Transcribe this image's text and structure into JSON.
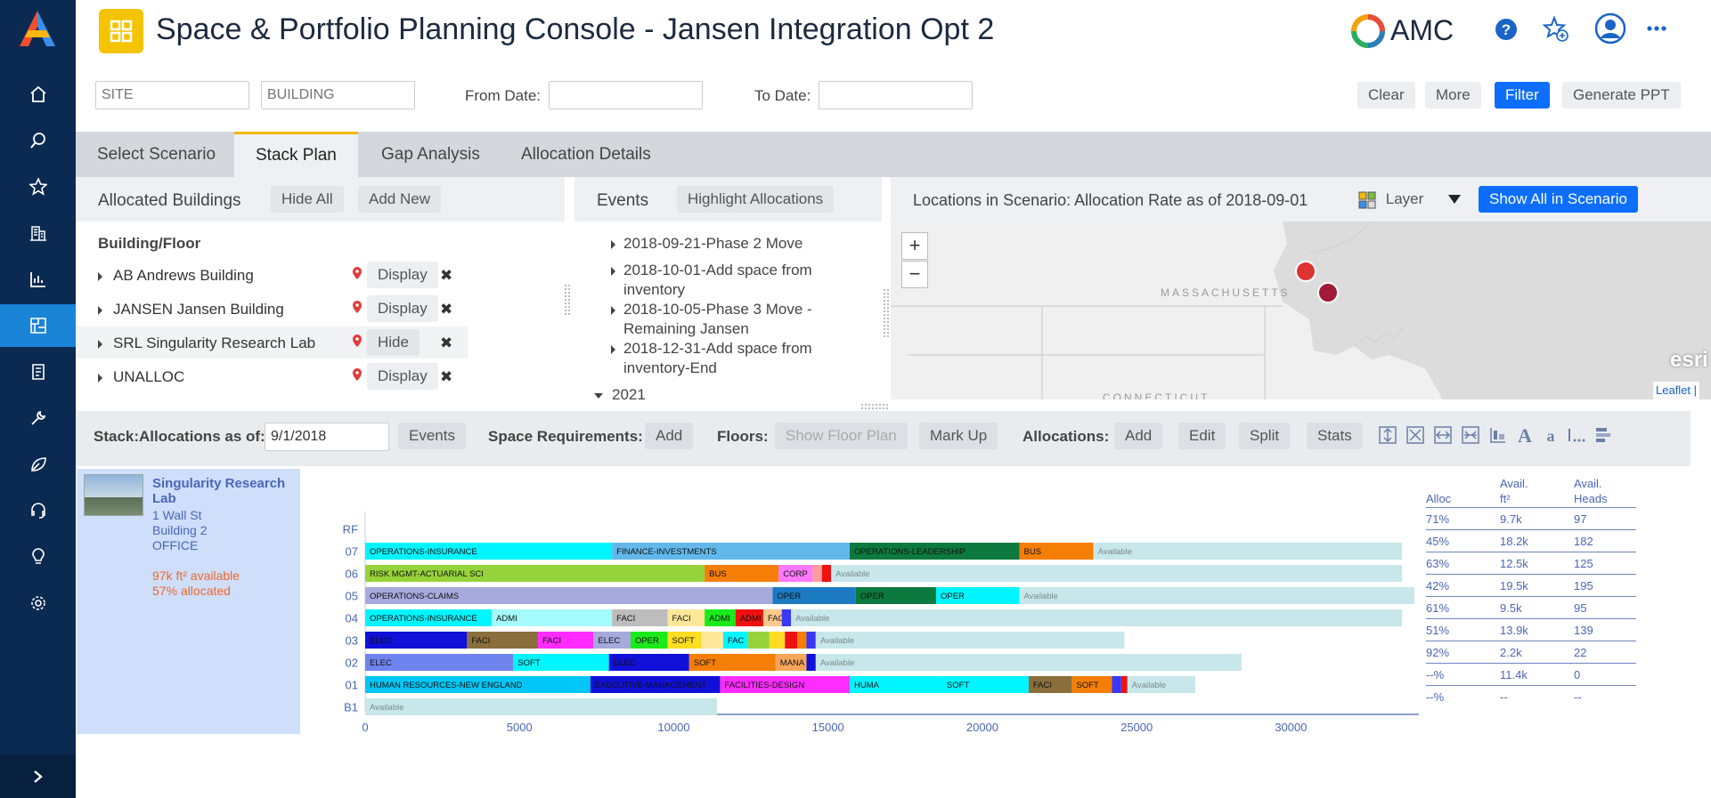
{
  "header": {
    "title": "Space & Portfolio Planning Console - Jansen Integration Opt 2",
    "brand": "AMC"
  },
  "filters": {
    "site_placeholder": "SITE",
    "building_placeholder": "BUILDING",
    "from_label": "From Date:",
    "to_label": "To Date:",
    "clear": "Clear",
    "more": "More",
    "filter": "Filter",
    "ppt": "Generate PPT"
  },
  "tabs": [
    "Select Scenario",
    "Stack Plan",
    "Gap Analysis",
    "Allocation Details"
  ],
  "buildings": {
    "title": "Allocated Buildings",
    "hide_all": "Hide All",
    "add_new": "Add New",
    "col_header": "Building/Floor",
    "rows": [
      {
        "name": "AB Andrews Building",
        "action": "Display"
      },
      {
        "name": "JANSEN Jansen Building",
        "action": "Display"
      },
      {
        "name": "SRL Singularity Research Lab",
        "action": "Hide"
      },
      {
        "name": "UNALLOC",
        "action": "Display"
      }
    ]
  },
  "events": {
    "title": "Events",
    "highlight": "Highlight Allocations",
    "items": [
      {
        "l1": "2018-09-21-Phase 2 Move",
        "l2": ""
      },
      {
        "l1": "2018-10-01-Add space from",
        "l2": "inventory"
      },
      {
        "l1": "2018-10-05-Phase 3 Move -",
        "l2": "Remaining Jansen"
      },
      {
        "l1": "2018-12-31-Add space from",
        "l2": "inventory-End"
      }
    ],
    "year": "2021"
  },
  "map": {
    "title": "Locations in Scenario: Allocation Rate as of 2018-09-01",
    "layer": "Layer",
    "show_all": "Show All in Scenario",
    "state": "MASSACHUSETTS",
    "state2": "CONNECTICUT",
    "zoom_in": "+",
    "zoom_out": "−",
    "esri": "esri",
    "attribution": "Leaflet |"
  },
  "stackbar": {
    "label": "Stack:Allocations as of:",
    "date": "9/1/2018",
    "events": "Events",
    "space_req": "Space Requirements:",
    "add": "Add",
    "floors": "Floors:",
    "show_floor_plan": "Show Floor Plan",
    "mark_up": "Mark Up",
    "allocations": "Allocations:",
    "alloc_add": "Add",
    "edit": "Edit",
    "split": "Split",
    "stats": "Stats"
  },
  "building_card": {
    "name": "Singularity Research Lab",
    "address": "1 Wall St",
    "building": "Building 2",
    "type": "OFFICE",
    "available": "97k ft² available",
    "allocated": "57% allocated"
  },
  "stats": {
    "headers": [
      "Alloc",
      "Avail.",
      "ft²",
      "Avail.",
      "Heads"
    ],
    "rows": [
      [
        "71%",
        "9.7k",
        "97"
      ],
      [
        "45%",
        "18.2k",
        "182"
      ],
      [
        "63%",
        "12.5k",
        "125"
      ],
      [
        "42%",
        "19.5k",
        "195"
      ],
      [
        "61%",
        "9.5k",
        "95"
      ],
      [
        "51%",
        "13.9k",
        "139"
      ],
      [
        "92%",
        "2.2k",
        "22"
      ],
      [
        "--%",
        "11.4k",
        "0"
      ],
      [
        "--%",
        "--",
        "--"
      ]
    ]
  },
  "chart_data": {
    "type": "bar",
    "orientation": "horizontal-stacked",
    "xlim": [
      0,
      34000
    ],
    "xticks": [
      0,
      5000,
      10000,
      15000,
      20000,
      25000,
      30000
    ],
    "floors": [
      {
        "floor": "RF",
        "segments": []
      },
      {
        "floor": "07",
        "segments": [
          {
            "label": "OPERATIONS-INSURANCE",
            "start": 0,
            "end": 8000,
            "color": "#00f5ff"
          },
          {
            "label": "FINANCE-INVESTMENTS",
            "start": 8000,
            "end": 15700,
            "color": "#62b8ea"
          },
          {
            "label": "OPERATIONS-LEADERSHIP",
            "start": 15700,
            "end": 21200,
            "color": "#0c7a3e"
          },
          {
            "label": "BUS",
            "start": 21200,
            "end": 23600,
            "color": "#f57e07"
          },
          {
            "label": "Available",
            "start": 23600,
            "end": 33600,
            "color": "#c8e7ea"
          }
        ]
      },
      {
        "floor": "06",
        "segments": [
          {
            "label": "RISK MGMT-ACTUARIAL SCI",
            "start": 0,
            "end": 11000,
            "color": "#96d33b"
          },
          {
            "label": "BUS",
            "start": 11000,
            "end": 13400,
            "color": "#f57e07"
          },
          {
            "label": "CORP",
            "start": 13400,
            "end": 14500,
            "color": "#ff78ff"
          },
          {
            "label": "",
            "start": 14500,
            "end": 14800,
            "color": "#ff9c9c"
          },
          {
            "label": "",
            "start": 14800,
            "end": 15100,
            "color": "#ee1111"
          },
          {
            "label": "Available",
            "start": 15100,
            "end": 33600,
            "color": "#c8e7ea"
          }
        ]
      },
      {
        "floor": "05",
        "segments": [
          {
            "label": "OPERATIONS-CLAIMS",
            "start": 0,
            "end": 13200,
            "color": "#a6a9dc"
          },
          {
            "label": "OPER",
            "start": 13200,
            "end": 15900,
            "color": "#1c7ac2"
          },
          {
            "label": "OPER",
            "start": 15900,
            "end": 18500,
            "color": "#0c7a3e"
          },
          {
            "label": "OPER",
            "start": 18500,
            "end": 21200,
            "color": "#00f5ff"
          },
          {
            "label": "Available",
            "start": 21200,
            "end": 34000,
            "color": "#c8e7ea"
          }
        ]
      },
      {
        "floor": "04",
        "segments": [
          {
            "label": "OPERATIONS-INSURANCE",
            "start": 0,
            "end": 4100,
            "color": "#00f5ff"
          },
          {
            "label": "ADMI",
            "start": 4100,
            "end": 8000,
            "color": "#a4fafc"
          },
          {
            "label": "FACI",
            "start": 8000,
            "end": 9800,
            "color": "#bdbdbd"
          },
          {
            "label": "FACI",
            "start": 9800,
            "end": 11000,
            "color": "#fde89a"
          },
          {
            "label": "ADMI",
            "start": 11000,
            "end": 12000,
            "color": "#1bea1b"
          },
          {
            "label": "ADMI",
            "start": 12000,
            "end": 12900,
            "color": "#ee1111"
          },
          {
            "label": "FAC",
            "start": 12900,
            "end": 13500,
            "color": "#fbc98e"
          },
          {
            "label": "",
            "start": 13500,
            "end": 13800,
            "color": "#3838f6"
          },
          {
            "label": "Available",
            "start": 13800,
            "end": 33600,
            "color": "#c8e7ea"
          }
        ]
      },
      {
        "floor": "03",
        "segments": [
          {
            "label": "ELEC",
            "start": 0,
            "end": 3300,
            "color": "#1010d8"
          },
          {
            "label": "FACI",
            "start": 3300,
            "end": 5600,
            "color": "#8a6f3d"
          },
          {
            "label": "FACI",
            "start": 5600,
            "end": 7400,
            "color": "#ff2bff"
          },
          {
            "label": "ELEC",
            "start": 7400,
            "end": 8600,
            "color": "#a6a9dc"
          },
          {
            "label": "OPER",
            "start": 8600,
            "end": 9800,
            "color": "#1bea1b"
          },
          {
            "label": "SOFT",
            "start": 9800,
            "end": 10900,
            "color": "#ffdd22"
          },
          {
            "label": "",
            "start": 10900,
            "end": 11600,
            "color": "#fde89a"
          },
          {
            "label": "FAC",
            "start": 11600,
            "end": 12400,
            "color": "#00f5ff"
          },
          {
            "label": "",
            "start": 12400,
            "end": 13100,
            "color": "#96d33b"
          },
          {
            "label": "",
            "start": 13100,
            "end": 13600,
            "color": "#ffdd22"
          },
          {
            "label": "",
            "start": 13600,
            "end": 14000,
            "color": "#ee1111"
          },
          {
            "label": "",
            "start": 14000,
            "end": 14300,
            "color": "#f57e07"
          },
          {
            "label": "",
            "start": 14300,
            "end": 14600,
            "color": "#3838f6"
          },
          {
            "label": "Available",
            "start": 14600,
            "end": 24600,
            "color": "#c8e7ea"
          }
        ]
      },
      {
        "floor": "02",
        "segments": [
          {
            "label": "ELEC",
            "start": 0,
            "end": 4800,
            "color": "#6f84ee"
          },
          {
            "label": "SOFT",
            "start": 4800,
            "end": 7900,
            "color": "#00f5ff"
          },
          {
            "label": "ELEC",
            "start": 7900,
            "end": 10500,
            "color": "#1010d8"
          },
          {
            "label": "SOFT",
            "start": 10500,
            "end": 13300,
            "color": "#f57e07"
          },
          {
            "label": "MANA",
            "start": 13300,
            "end": 14300,
            "color": "#f6a55b"
          },
          {
            "label": "",
            "start": 14300,
            "end": 14600,
            "color": "#1010d8"
          },
          {
            "label": "Available",
            "start": 14600,
            "end": 28400,
            "color": "#c8e7ea"
          }
        ]
      },
      {
        "floor": "01",
        "segments": [
          {
            "label": "HUMAN RESOURCES-NEW ENGLAND",
            "start": 0,
            "end": 7300,
            "color": "#00c7f7"
          },
          {
            "label": "EXECUTIVE-MANAGEMENT",
            "start": 7300,
            "end": 11500,
            "color": "#1010d8"
          },
          {
            "label": "FACILITIES-DESIGN",
            "start": 11500,
            "end": 15700,
            "color": "#ff2bff"
          },
          {
            "label": "HUMA",
            "start": 15700,
            "end": 18700,
            "color": "#00f5ff"
          },
          {
            "label": "SOFT",
            "start": 18700,
            "end": 21500,
            "color": "#00f5ff"
          },
          {
            "label": "FACI",
            "start": 21500,
            "end": 22900,
            "color": "#8a6f3d"
          },
          {
            "label": "SOFT",
            "start": 22900,
            "end": 24200,
            "color": "#f57e07"
          },
          {
            "label": "",
            "start": 24200,
            "end": 24500,
            "color": "#3838f6"
          },
          {
            "label": "",
            "start": 24500,
            "end": 24700,
            "color": "#ee1111"
          },
          {
            "label": "Available",
            "start": 24700,
            "end": 26900,
            "color": "#c8e7ea"
          }
        ]
      },
      {
        "floor": "B1",
        "segments": [
          {
            "label": "Available",
            "start": 0,
            "end": 11400,
            "color": "#c8e7ea"
          }
        ]
      }
    ]
  }
}
